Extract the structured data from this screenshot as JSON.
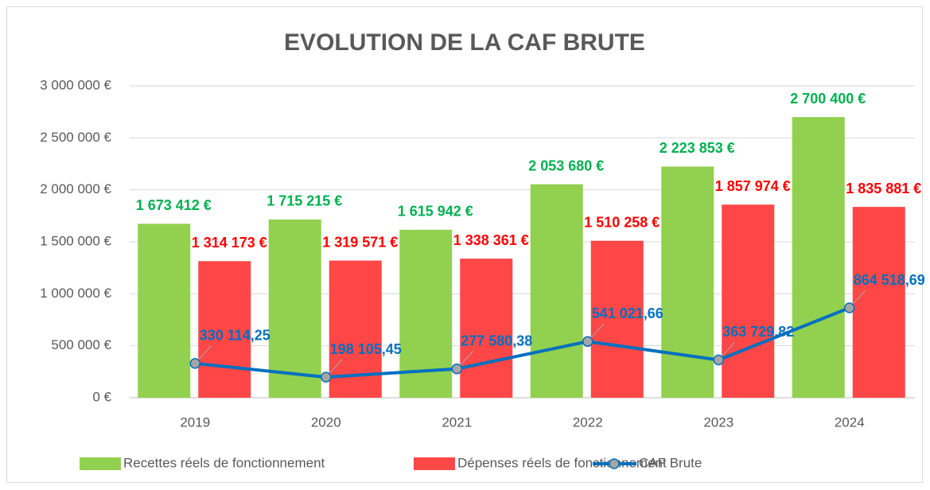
{
  "chart_data": {
    "type": "bar",
    "title": "EVOLUTION DE LA CAF BRUTE",
    "categories": [
      "2019",
      "2020",
      "2021",
      "2022",
      "2023",
      "2024"
    ],
    "series": [
      {
        "name": "Recettes réels de fonctionnement",
        "type": "bar",
        "color": "#92d050",
        "label_color": "#00b050",
        "values": [
          1673412,
          1715215,
          1615942,
          2053680,
          2223853,
          2700400
        ],
        "value_labels": [
          "1 673 412 €",
          "1 715 215 €",
          "1 615 942 €",
          "2 053 680 €",
          "2 223 853 €",
          "2 700 400 €"
        ]
      },
      {
        "name": "Dépenses réels de fonctionnement",
        "type": "bar",
        "color": "#ff4747",
        "label_color": "#ff0000",
        "values": [
          1314173,
          1319571,
          1338361,
          1510258,
          1857974,
          1835881
        ],
        "value_labels": [
          "1 314 173 €",
          "1 319 571 €",
          "1 338 361 €",
          "1 510 258 €",
          "1 857 974 €",
          "1 835 881 €"
        ]
      },
      {
        "name": "CAF Brute",
        "type": "line",
        "color": "#0070c0",
        "label_color": "#0070c0",
        "values": [
          330114.25,
          198105.45,
          277580.38,
          541021.66,
          363729.82,
          864518.69
        ],
        "value_labels": [
          "330 114,25",
          "198 105,45",
          "277 580,38",
          "541 021,66",
          "363 729,82",
          "864 518,69"
        ]
      }
    ],
    "ylim": [
      0,
      3000000
    ],
    "yticks": [
      {
        "value": 0,
        "label": "0 €"
      },
      {
        "value": 500000,
        "label": "500 000 €"
      },
      {
        "value": 1000000,
        "label": "1 000 000 €"
      },
      {
        "value": 1500000,
        "label": "1 500 000 €"
      },
      {
        "value": 2000000,
        "label": "2 000 000 €"
      },
      {
        "value": 2500000,
        "label": "2 500 000 €"
      },
      {
        "value": 3000000,
        "label": "3 000 000 €"
      }
    ],
    "grid": true,
    "legend": "bottom"
  }
}
